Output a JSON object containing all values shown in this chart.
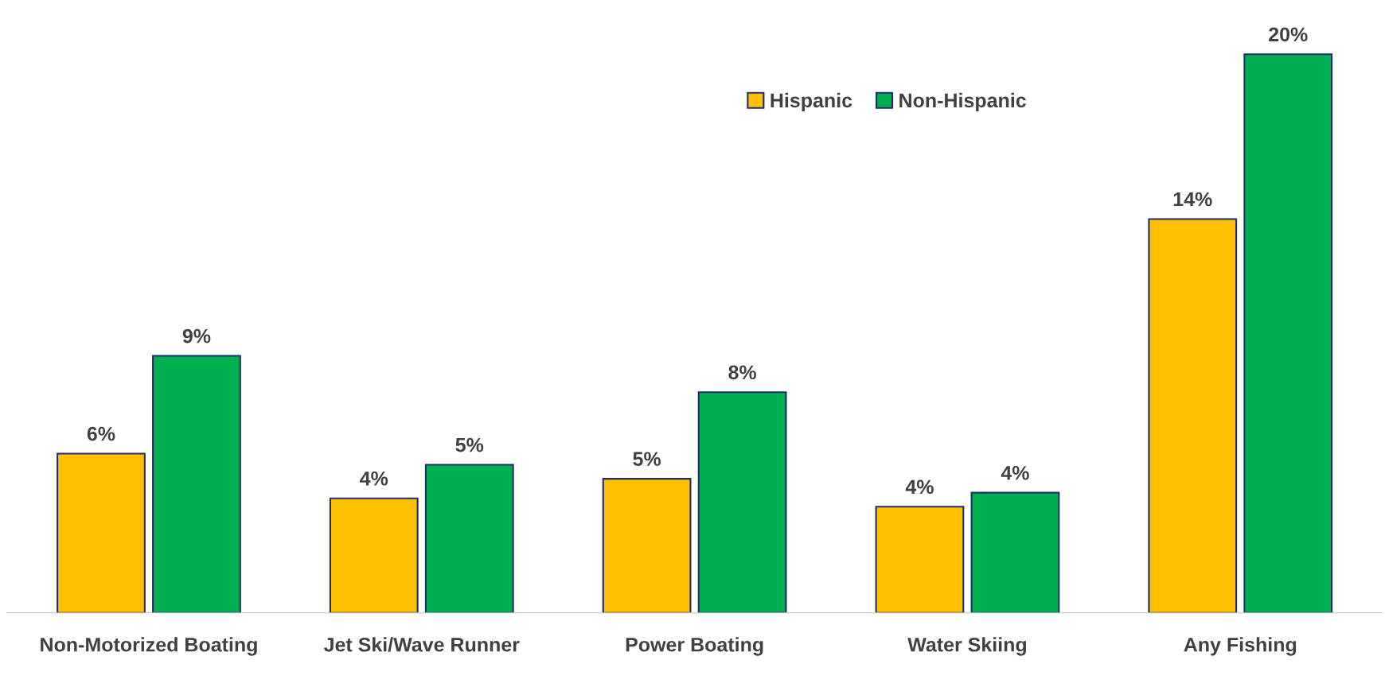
{
  "chart_data": {
    "type": "bar",
    "categories": [
      "Non-Motorized Boating",
      "Jet Ski/Wave Runner",
      "Power Boating",
      "Water Skiing",
      "Any Fishing"
    ],
    "series": [
      {
        "name": "Hispanic",
        "color": "#ffc000",
        "values": [
          5.7,
          4.1,
          4.8,
          3.8,
          14.1
        ],
        "value_labels": [
          "6%",
          "4%",
          "5%",
          "4%",
          "14%"
        ]
      },
      {
        "name": "Non-Hispanic",
        "color": "#00b050",
        "values": [
          9.2,
          5.3,
          7.9,
          4.3,
          20.0
        ],
        "value_labels": [
          "9%",
          "5%",
          "8%",
          "4%",
          "20%"
        ]
      }
    ],
    "legend": "top",
    "grid": false
  }
}
